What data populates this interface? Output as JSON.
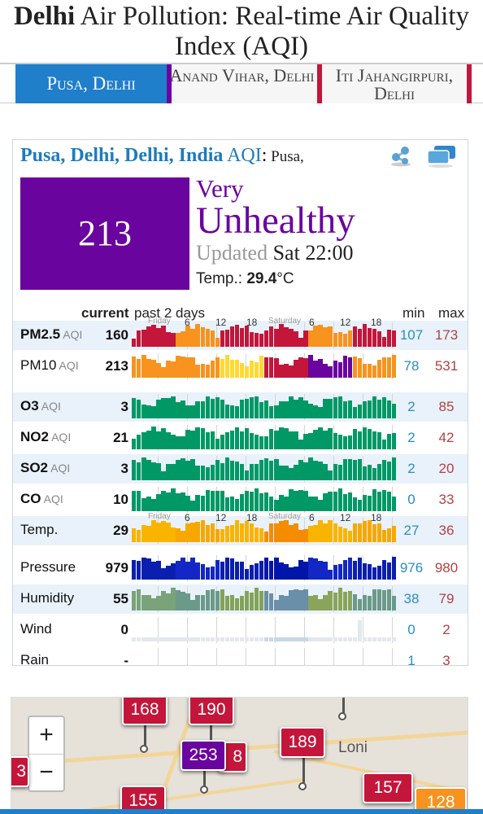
{
  "page": {
    "title_bold": "Delhi",
    "title_rest": " Air Pollution: Real-time Air Quality Index (AQI)"
  },
  "tabs": [
    {
      "label": "Pusa, Delhi",
      "active": true,
      "color": "#1f7fcb"
    },
    {
      "label": "Anand Vihar, Delhi",
      "active": false,
      "color": "#6a049e"
    },
    {
      "label": "Iti Jahangirpuri, Delhi",
      "active": false,
      "color": "#c3163a"
    }
  ],
  "station": {
    "name": "Pusa, Delhi, Delhi, India",
    "aqi_label": " AQI",
    "colon": ":",
    "city": " Pusa,",
    "share_icon": "share-icon",
    "windows_icon": "stacked-windows-icon"
  },
  "aqi": {
    "value": "213",
    "level_line1": "Very",
    "level_line2": "Unhealthy",
    "color": "#6a049e",
    "updated_label": "Updated",
    "updated_time": " Sat 22:00",
    "temp_label": "Temp.: ",
    "temp_value": "29.4",
    "temp_unit": "°C"
  },
  "table": {
    "header_current": "current",
    "header_past": "past 2 days",
    "header_min": "min",
    "header_max": "max",
    "axis_day1": "Friday",
    "axis_day2": "Saturday",
    "axis_hours": [
      "6",
      "12",
      "18",
      "6",
      "12",
      "18"
    ],
    "rows": [
      {
        "name": "PM2.5",
        "unit": " AQI",
        "bold": true,
        "current": "160",
        "min": "107",
        "max": "173",
        "palette": "pm25"
      },
      {
        "name": "PM10",
        "unit": " AQI",
        "bold": false,
        "current": "213",
        "min": "78",
        "max": "531",
        "palette": "pm10"
      },
      {
        "name": "O3",
        "unit": " AQI",
        "bold": true,
        "current": "3",
        "min": "2",
        "max": "85",
        "palette": "green"
      },
      {
        "name": "NO2",
        "unit": " AQI",
        "bold": true,
        "current": "21",
        "min": "2",
        "max": "42",
        "palette": "green"
      },
      {
        "name": "SO2",
        "unit": " AQI",
        "bold": true,
        "current": "3",
        "min": "2",
        "max": "20",
        "palette": "green"
      },
      {
        "name": "CO",
        "unit": " AQI",
        "bold": true,
        "current": "10",
        "min": "0",
        "max": "33",
        "palette": "green"
      },
      {
        "name": "Temp.",
        "unit": "",
        "bold": false,
        "current": "29",
        "min": "27",
        "max": "36",
        "palette": "temp"
      },
      {
        "name": "Pressure",
        "unit": "",
        "bold": false,
        "current": "979",
        "min": "976",
        "max": "980",
        "palette": "pressure"
      },
      {
        "name": "Humidity",
        "unit": "",
        "bold": false,
        "current": "55",
        "min": "38",
        "max": "79",
        "palette": "humidity"
      },
      {
        "name": "Wind",
        "unit": "",
        "bold": false,
        "current": "0",
        "min": "0",
        "max": "2",
        "palette": "wind"
      },
      {
        "name": "Rain",
        "unit": "",
        "bold": false,
        "current": "-",
        "min": "1",
        "max": "3",
        "palette": "rain"
      }
    ]
  },
  "map": {
    "zoom_in": "+",
    "zoom_out": "−",
    "place_label": "Loni",
    "markers": [
      {
        "value": "168",
        "color": "#c3163a"
      },
      {
        "value": "190",
        "color": "#c3163a"
      },
      {
        "value": "253",
        "color": "#6a049e"
      },
      {
        "value": "8",
        "color": "#c3163a"
      },
      {
        "value": "189",
        "color": "#c3163a"
      },
      {
        "value": "3",
        "color": "#c3163a"
      },
      {
        "value": "155",
        "color": "#c3163a"
      },
      {
        "value": "157",
        "color": "#c3163a"
      },
      {
        "value": "128",
        "color": "#f7931e"
      }
    ]
  }
}
